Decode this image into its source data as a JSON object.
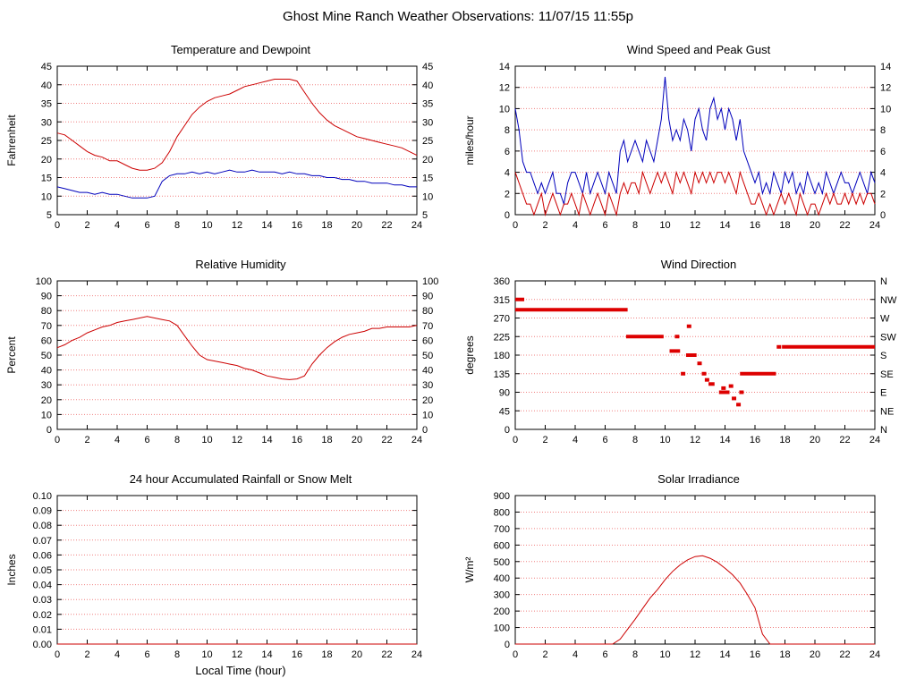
{
  "title": "Ghost Mine Ranch Weather Observations: 11/07/15 11:55p",
  "xlabel": "Local Time (hour)",
  "colors": {
    "red": "#cc0000",
    "blue": "#0000bb",
    "grid": "#f08080",
    "axis": "#000000"
  },
  "chart_data": [
    {
      "key": "temperature-dewpoint",
      "type": "line",
      "title": "Temperature and Dewpoint",
      "ylabel": "Fahrenheit",
      "xlim": [
        0,
        24
      ],
      "xtick_step": 2,
      "ylim": [
        5,
        45
      ],
      "ytick_step": 5,
      "ydecimals": 0,
      "right_labels": "same",
      "series": [
        {
          "name": "Temperature",
          "color": "#cc0000",
          "x0": 0,
          "dx": 0.5,
          "values": [
            27,
            26.5,
            25,
            23.5,
            22,
            21,
            20.5,
            19.5,
            19.5,
            18.5,
            17.5,
            17,
            17,
            17.5,
            19,
            22,
            26,
            29,
            32,
            34,
            35.5,
            36.5,
            37,
            37.5,
            38.5,
            39.5,
            40,
            40.5,
            41,
            41.5,
            41.5,
            41.5,
            41,
            38,
            35,
            32.5,
            30.5,
            29,
            28,
            27,
            26,
            25.5,
            25,
            24.5,
            24,
            23.5,
            23,
            22,
            21
          ]
        },
        {
          "name": "Dewpoint",
          "color": "#0000bb",
          "x0": 0,
          "dx": 0.5,
          "values": [
            12.5,
            12,
            11.5,
            11,
            11,
            10.5,
            11,
            10.5,
            10.5,
            10,
            9.5,
            9.5,
            9.5,
            10,
            14,
            15.5,
            16,
            16,
            16.5,
            16,
            16.5,
            16,
            16.5,
            17,
            16.5,
            16.5,
            17,
            16.5,
            16.5,
            16.5,
            16,
            16.5,
            16,
            16,
            15.5,
            15.5,
            15,
            15,
            14.5,
            14.5,
            14,
            14,
            13.5,
            13.5,
            13.5,
            13,
            13,
            12.5,
            12.5
          ]
        }
      ]
    },
    {
      "key": "wind-speed-gust",
      "type": "line",
      "title": "Wind Speed and Peak Gust",
      "ylabel": "miles/hour",
      "xlim": [
        0,
        24
      ],
      "xtick_step": 2,
      "ylim": [
        0,
        14
      ],
      "ytick_step": 2,
      "ydecimals": 0,
      "right_labels": "same",
      "series": [
        {
          "name": "Peak Gust",
          "color": "#0000bb",
          "x0": 0,
          "dx": 0.25,
          "values": [
            10,
            8,
            5,
            4,
            4,
            3,
            2,
            3,
            2,
            3,
            4,
            2,
            2,
            1,
            3,
            4,
            4,
            3,
            2,
            4,
            2,
            3,
            4,
            3,
            2,
            4,
            3,
            2,
            6,
            7,
            5,
            6,
            7,
            6,
            5,
            7,
            6,
            5,
            7,
            9,
            13,
            9,
            7,
            8,
            7,
            9,
            8,
            6,
            9,
            10,
            8,
            7,
            10,
            11,
            9,
            10,
            8,
            10,
            9,
            7,
            9,
            6,
            5,
            4,
            3,
            4,
            2,
            3,
            2,
            4,
            3,
            2,
            4,
            3,
            4,
            2,
            3,
            2,
            4,
            3,
            2,
            3,
            2,
            4,
            3,
            2,
            3,
            4,
            3,
            3,
            2,
            3,
            4,
            3,
            2,
            4,
            3
          ]
        },
        {
          "name": "Wind Speed",
          "color": "#cc0000",
          "x0": 0,
          "dx": 0.25,
          "values": [
            4,
            3,
            2,
            1,
            1,
            0,
            1,
            2,
            0,
            1,
            2,
            1,
            0,
            1,
            1,
            2,
            1,
            0,
            2,
            1,
            0,
            1,
            2,
            1,
            0,
            2,
            1,
            0,
            2,
            3,
            2,
            3,
            3,
            2,
            4,
            3,
            2,
            3,
            4,
            3,
            4,
            3,
            2,
            4,
            3,
            4,
            3,
            2,
            4,
            3,
            4,
            3,
            4,
            3,
            4,
            4,
            3,
            4,
            3,
            2,
            4,
            3,
            2,
            1,
            1,
            2,
            1,
            0,
            1,
            0,
            1,
            2,
            1,
            2,
            1,
            0,
            2,
            1,
            0,
            1,
            1,
            0,
            1,
            2,
            1,
            2,
            1,
            1,
            2,
            1,
            2,
            1,
            2,
            1,
            2,
            2,
            1
          ]
        }
      ]
    },
    {
      "key": "relative-humidity",
      "type": "line",
      "title": "Relative Humidity",
      "ylabel": "Percent",
      "xlim": [
        0,
        24
      ],
      "xtick_step": 2,
      "ylim": [
        0,
        100
      ],
      "ytick_step": 10,
      "ydecimals": 0,
      "right_labels": "same",
      "series": [
        {
          "name": "Relative Humidity",
          "color": "#cc0000",
          "x0": 0,
          "dx": 0.5,
          "values": [
            55,
            57,
            60,
            62,
            65,
            67,
            69,
            70,
            72,
            73,
            74,
            75,
            76,
            75,
            74,
            73,
            70,
            63,
            56,
            50,
            47,
            46,
            45,
            44,
            43,
            41,
            40,
            38,
            36,
            35,
            34,
            33.5,
            34,
            36,
            44,
            50,
            55,
            59,
            62,
            64,
            65,
            66,
            68,
            68,
            69,
            69,
            69,
            69,
            70
          ]
        }
      ]
    },
    {
      "key": "wind-direction",
      "type": "segments",
      "title": "Wind Direction",
      "ylabel": "degrees",
      "xlim": [
        0,
        24
      ],
      "xtick_step": 2,
      "ylim": [
        0,
        360
      ],
      "ytick_step": 45,
      "ydecimals": 0,
      "right_labels": "custom",
      "right_label_values": [
        "N",
        "NE",
        "E",
        "SE",
        "S",
        "SW",
        "W",
        "NW",
        "N"
      ],
      "series": [
        {
          "name": "Wind Direction",
          "color": "#dd0000",
          "segments": [
            [
              0,
              0.6,
              315
            ],
            [
              0,
              7.5,
              290
            ],
            [
              7.4,
              9.9,
              225
            ],
            [
              10.3,
              11.0,
              190
            ],
            [
              11.4,
              12.1,
              180
            ],
            [
              12.9,
              13.3,
              110
            ],
            [
              13.6,
              14.3,
              90
            ],
            [
              15.0,
              17.4,
              135
            ],
            [
              17.8,
              24,
              200
            ]
          ],
          "points": [
            [
              10.8,
              225
            ],
            [
              11.2,
              135
            ],
            [
              11.6,
              250
            ],
            [
              12.3,
              160
            ],
            [
              12.6,
              135
            ],
            [
              12.8,
              120
            ],
            [
              13.9,
              100
            ],
            [
              14.4,
              105
            ],
            [
              14.6,
              75
            ],
            [
              14.9,
              60
            ],
            [
              15.1,
              90
            ],
            [
              17.6,
              200
            ]
          ]
        }
      ]
    },
    {
      "key": "rainfall",
      "type": "line",
      "title": "24 hour Accumulated Rainfall or Snow Melt",
      "ylabel": "Inches",
      "xlabel": "Local Time (hour)",
      "xlim": [
        0,
        24
      ],
      "xtick_step": 2,
      "ylim": [
        0,
        0.1
      ],
      "ytick_step": 0.01,
      "ydecimals": 2,
      "right_labels": "none",
      "series": [
        {
          "name": "Rainfall",
          "color": "#cc0000",
          "x0": 0,
          "dx": 1,
          "values": [
            0,
            0,
            0,
            0,
            0,
            0,
            0,
            0,
            0,
            0,
            0,
            0,
            0,
            0,
            0,
            0,
            0,
            0,
            0,
            0,
            0,
            0,
            0,
            0,
            0
          ]
        }
      ]
    },
    {
      "key": "solar-irradiance",
      "type": "line",
      "title": "Solar Irradiance",
      "ylabel": "W/m²",
      "xlim": [
        0,
        24
      ],
      "xtick_step": 2,
      "ylim": [
        0,
        900
      ],
      "ytick_step": 100,
      "ydecimals": 0,
      "right_labels": "none",
      "series": [
        {
          "name": "Solar Irradiance",
          "color": "#cc0000",
          "x0": 0,
          "dx": 0.5,
          "values": [
            0,
            0,
            0,
            0,
            0,
            0,
            0,
            0,
            0,
            0,
            0,
            0,
            0,
            0,
            30,
            90,
            150,
            215,
            280,
            330,
            390,
            440,
            480,
            510,
            530,
            535,
            520,
            495,
            460,
            420,
            370,
            300,
            220,
            60,
            0,
            0,
            0,
            0,
            0,
            0,
            0,
            0,
            0,
            0,
            0,
            0,
            0,
            0,
            0
          ]
        }
      ]
    }
  ]
}
